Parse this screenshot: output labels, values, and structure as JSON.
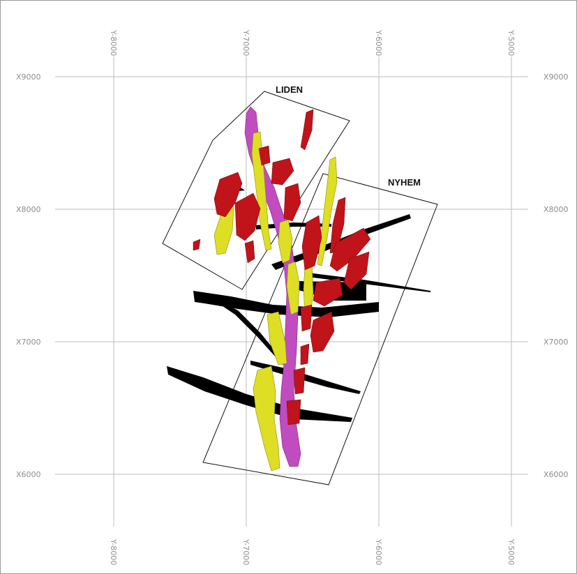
{
  "map": {
    "y_ticks": [
      "Y-8000",
      "Y-7000",
      "Y-6000",
      "Y-5000"
    ],
    "x_ticks": [
      "X9000",
      "X8000",
      "X7000",
      "X6000"
    ],
    "areas": {
      "north": "LIDEN",
      "south": "NYHEM"
    },
    "colors": {
      "grid": "#bdbdbd",
      "tick_text": "#8c8c8c",
      "ore_red": "#c0141a",
      "ore_yellow": "#dede24",
      "ore_magenta": "#c04cc0",
      "fault_black": "#000000",
      "outline": "#111111"
    }
  }
}
